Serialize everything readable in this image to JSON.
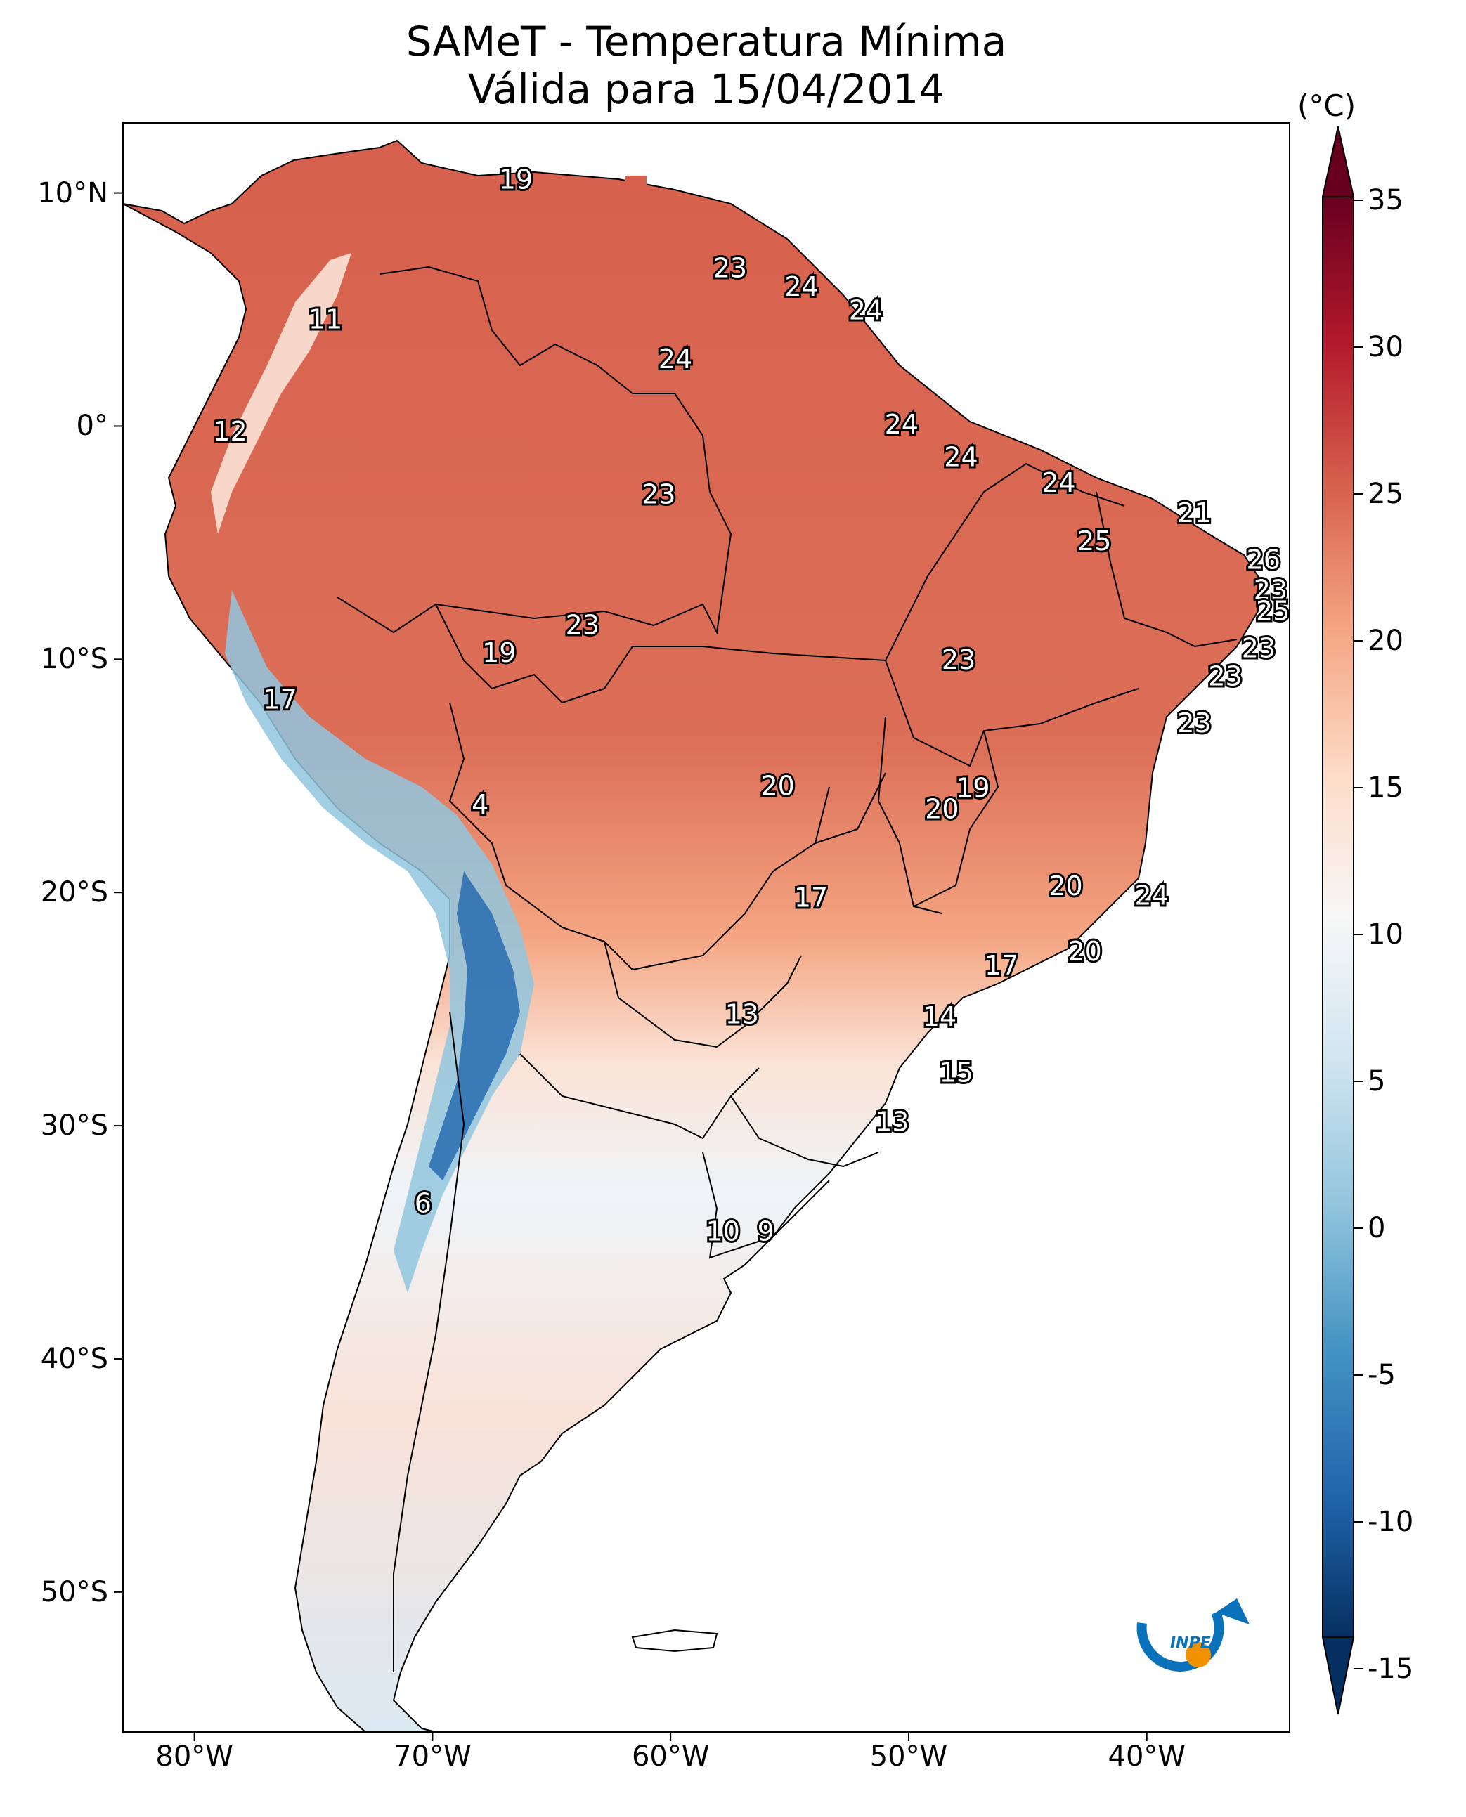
{
  "title_line1": "SAMeT - Temperatura Mínima",
  "title_line2": "Válida para 15/04/2014",
  "lat_ticks": [
    {
      "label": "10°N",
      "lat": 10
    },
    {
      "label": "0°",
      "lat": 0
    },
    {
      "label": "10°S",
      "lat": -10
    },
    {
      "label": "20°S",
      "lat": -20
    },
    {
      "label": "30°S",
      "lat": -30
    },
    {
      "label": "40°S",
      "lat": -40
    },
    {
      "label": "50°S",
      "lat": -50
    }
  ],
  "lon_ticks": [
    {
      "label": "80°W",
      "lon": -80
    },
    {
      "label": "70°W",
      "lon": -70
    },
    {
      "label": "60°W",
      "lon": -60
    },
    {
      "label": "50°W",
      "lon": -50
    },
    {
      "label": "40°W",
      "lon": -40
    }
  ],
  "colorbar": {
    "unit": "(°C)",
    "ticks": [
      "35",
      "30",
      "25",
      "20",
      "15",
      "10",
      "5",
      "0",
      "-5",
      "-10",
      "-15"
    ],
    "min": -15,
    "max": 35,
    "colors": [
      "#053061",
      "#2166ac",
      "#4393c3",
      "#92c5de",
      "#d1e5f0",
      "#f7f7f7",
      "#fddbc7",
      "#f4a582",
      "#d6604d",
      "#b2182b",
      "#67001f"
    ]
  },
  "logo": {
    "text": "INPE",
    "colors": [
      "#0a72bb",
      "#f39200"
    ]
  },
  "labels": [
    {
      "text": "19",
      "lon": -66.5,
      "lat": 10.5
    },
    {
      "text": "11",
      "lon": -74.5,
      "lat": 4.5
    },
    {
      "text": "12",
      "lon": -78.5,
      "lat": -0.3
    },
    {
      "text": "23",
      "lon": -57.5,
      "lat": 6.7
    },
    {
      "text": "24",
      "lon": -54.5,
      "lat": 5.9
    },
    {
      "text": "24",
      "lon": -51.8,
      "lat": 4.9
    },
    {
      "text": "24",
      "lon": -59.8,
      "lat": 2.8
    },
    {
      "text": "23",
      "lon": -60.5,
      "lat": -3.0
    },
    {
      "text": "24",
      "lon": -50.3,
      "lat": 0.0
    },
    {
      "text": "24",
      "lon": -47.8,
      "lat": -1.4
    },
    {
      "text": "24",
      "lon": -43.7,
      "lat": -2.5
    },
    {
      "text": "21",
      "lon": -38.0,
      "lat": -3.8
    },
    {
      "text": "25",
      "lon": -42.2,
      "lat": -5.0
    },
    {
      "text": "26",
      "lon": -35.1,
      "lat": -5.8
    },
    {
      "text": "23",
      "lon": -34.8,
      "lat": -7.1
    },
    {
      "text": "25",
      "lon": -34.7,
      "lat": -8.0
    },
    {
      "text": "23",
      "lon": -35.3,
      "lat": -9.6
    },
    {
      "text": "23",
      "lon": -36.7,
      "lat": -10.8
    },
    {
      "text": "23",
      "lon": -63.7,
      "lat": -8.6
    },
    {
      "text": "19",
      "lon": -67.2,
      "lat": -9.8
    },
    {
      "text": "23",
      "lon": -47.9,
      "lat": -10.1
    },
    {
      "text": "23",
      "lon": -38.0,
      "lat": -12.8
    },
    {
      "text": "17",
      "lon": -76.4,
      "lat": -11.8
    },
    {
      "text": "20",
      "lon": -55.5,
      "lat": -15.5
    },
    {
      "text": "19",
      "lon": -47.3,
      "lat": -15.6
    },
    {
      "text": "20",
      "lon": -48.6,
      "lat": -16.5
    },
    {
      "text": "4",
      "lon": -68.0,
      "lat": -16.3
    },
    {
      "text": "17",
      "lon": -54.1,
      "lat": -20.3
    },
    {
      "text": "20",
      "lon": -43.4,
      "lat": -19.8
    },
    {
      "text": "24",
      "lon": -39.8,
      "lat": -20.2
    },
    {
      "text": "20",
      "lon": -42.6,
      "lat": -22.6
    },
    {
      "text": "17",
      "lon": -46.1,
      "lat": -23.2
    },
    {
      "text": "13",
      "lon": -57.0,
      "lat": -25.3
    },
    {
      "text": "14",
      "lon": -48.7,
      "lat": -25.4
    },
    {
      "text": "15",
      "lon": -48.0,
      "lat": -27.8
    },
    {
      "text": "13",
      "lon": -50.7,
      "lat": -29.9
    },
    {
      "text": "6",
      "lon": -70.4,
      "lat": -33.4
    },
    {
      "text": "10",
      "lon": -57.8,
      "lat": -34.6
    },
    {
      "text": "9",
      "lon": -56.0,
      "lat": -34.6
    }
  ]
}
